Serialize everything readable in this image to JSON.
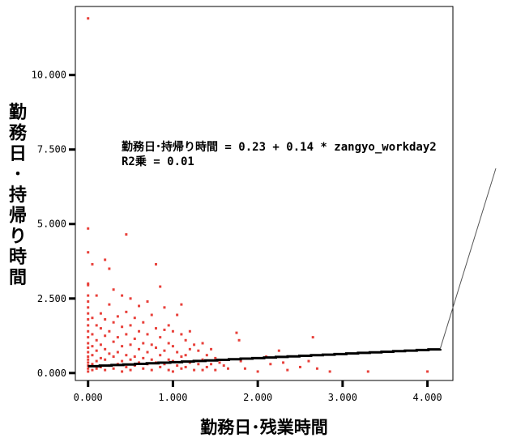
{
  "chart_data": {
    "type": "scatter",
    "title": "",
    "xlabel": "勤務日･残業時間",
    "ylabel": "勤務日･持帰り時間",
    "xlim": [
      -0.15,
      4.3
    ],
    "ylim": [
      -0.25,
      12.3
    ],
    "x_ticks": [
      0,
      1,
      2,
      3,
      4
    ],
    "x_tick_labels": [
      "0.000",
      "1.000",
      "2.000",
      "3.000",
      "4.000"
    ],
    "y_ticks": [
      0,
      2.5,
      5,
      7.5,
      10
    ],
    "y_tick_labels": [
      "0.000",
      "2.500",
      "5.000",
      "7.500",
      "10.000"
    ],
    "grid": false,
    "colors": {
      "points": "#e8403a",
      "fit_line": "#000000",
      "frame": "#000000"
    },
    "annotation": {
      "equation": "勤務日･持帰り時間 = 0.23 + 0.14 * zangyo_workday2",
      "r2": "R2乗 = 0.01"
    },
    "fit": {
      "intercept": 0.23,
      "slope": 0.14,
      "x_range": [
        0,
        4.15
      ]
    },
    "points": [
      [
        0,
        11.9
      ],
      [
        0,
        4.85
      ],
      [
        0,
        4.05
      ],
      [
        0,
        3.0
      ],
      [
        0,
        2.95
      ],
      [
        0,
        2.6
      ],
      [
        0,
        2.4
      ],
      [
        0,
        2.2
      ],
      [
        0,
        2.0
      ],
      [
        0,
        1.8
      ],
      [
        0,
        1.6
      ],
      [
        0,
        1.4
      ],
      [
        0,
        1.2
      ],
      [
        0,
        1.0
      ],
      [
        0,
        0.85
      ],
      [
        0,
        0.7
      ],
      [
        0,
        0.55
      ],
      [
        0,
        0.45
      ],
      [
        0,
        0.35
      ],
      [
        0,
        0.25
      ],
      [
        0,
        0.15
      ],
      [
        0,
        0.05
      ],
      [
        0.05,
        3.65
      ],
      [
        0.05,
        1.85
      ],
      [
        0.05,
        1.3
      ],
      [
        0.05,
        0.9
      ],
      [
        0.05,
        0.6
      ],
      [
        0.05,
        0.3
      ],
      [
        0.05,
        0.1
      ],
      [
        0.1,
        2.6
      ],
      [
        0.1,
        1.6
      ],
      [
        0.1,
        1.1
      ],
      [
        0.1,
        0.75
      ],
      [
        0.1,
        0.4
      ],
      [
        0.1,
        0.15
      ],
      [
        0.15,
        2.0
      ],
      [
        0.15,
        1.5
      ],
      [
        0.15,
        0.95
      ],
      [
        0.15,
        0.5
      ],
      [
        0.15,
        0.2
      ],
      [
        0.2,
        3.8
      ],
      [
        0.2,
        1.8
      ],
      [
        0.2,
        1.25
      ],
      [
        0.2,
        0.8
      ],
      [
        0.2,
        0.45
      ],
      [
        0.2,
        0.1
      ],
      [
        0.25,
        3.5
      ],
      [
        0.25,
        2.3
      ],
      [
        0.25,
        1.4
      ],
      [
        0.25,
        0.65
      ],
      [
        0.25,
        0.25
      ],
      [
        0.3,
        2.8
      ],
      [
        0.3,
        1.7
      ],
      [
        0.3,
        1.05
      ],
      [
        0.3,
        0.55
      ],
      [
        0.3,
        0.15
      ],
      [
        0.35,
        1.9
      ],
      [
        0.35,
        1.2
      ],
      [
        0.35,
        0.7
      ],
      [
        0.35,
        0.3
      ],
      [
        0.4,
        2.6
      ],
      [
        0.4,
        1.55
      ],
      [
        0.4,
        0.9
      ],
      [
        0.4,
        0.4
      ],
      [
        0.4,
        0.05
      ],
      [
        0.45,
        4.65
      ],
      [
        0.45,
        2.05
      ],
      [
        0.45,
        1.3
      ],
      [
        0.45,
        0.6
      ],
      [
        0.45,
        0.2
      ],
      [
        0.5,
        2.5
      ],
      [
        0.5,
        1.6
      ],
      [
        0.5,
        0.95
      ],
      [
        0.5,
        0.45
      ],
      [
        0.5,
        0.1
      ],
      [
        0.55,
        1.85
      ],
      [
        0.55,
        1.15
      ],
      [
        0.55,
        0.55
      ],
      [
        0.55,
        0.25
      ],
      [
        0.6,
        2.25
      ],
      [
        0.6,
        1.4
      ],
      [
        0.6,
        0.8
      ],
      [
        0.6,
        0.35
      ],
      [
        0.65,
        1.7
      ],
      [
        0.65,
        1.0
      ],
      [
        0.65,
        0.5
      ],
      [
        0.65,
        0.15
      ],
      [
        0.7,
        2.4
      ],
      [
        0.7,
        1.3
      ],
      [
        0.7,
        0.7
      ],
      [
        0.7,
        0.3
      ],
      [
        0.75,
        1.95
      ],
      [
        0.75,
        0.95
      ],
      [
        0.75,
        0.45
      ],
      [
        0.75,
        0.1
      ],
      [
        0.8,
        3.65
      ],
      [
        0.8,
        1.5
      ],
      [
        0.8,
        0.85
      ],
      [
        0.8,
        0.35
      ],
      [
        0.85,
        2.9
      ],
      [
        0.85,
        1.2
      ],
      [
        0.85,
        0.6
      ],
      [
        0.85,
        0.2
      ],
      [
        0.9,
        2.2
      ],
      [
        0.9,
        1.45
      ],
      [
        0.9,
        0.75
      ],
      [
        0.9,
        0.3
      ],
      [
        0.95,
        1.6
      ],
      [
        0.95,
        1.0
      ],
      [
        0.95,
        0.45
      ],
      [
        0.95,
        0.1
      ],
      [
        1.0,
        1.4
      ],
      [
        1.0,
        0.9
      ],
      [
        1.0,
        0.4
      ],
      [
        1.0,
        0.05
      ],
      [
        1.05,
        1.95
      ],
      [
        1.05,
        0.7
      ],
      [
        1.05,
        0.25
      ],
      [
        1.1,
        2.3
      ],
      [
        1.1,
        1.3
      ],
      [
        1.1,
        0.55
      ],
      [
        1.1,
        0.15
      ],
      [
        1.15,
        1.1
      ],
      [
        1.15,
        0.6
      ],
      [
        1.15,
        0.2
      ],
      [
        1.2,
        1.4
      ],
      [
        1.2,
        0.8
      ],
      [
        1.2,
        0.35
      ],
      [
        1.25,
        0.95
      ],
      [
        1.25,
        0.4
      ],
      [
        1.25,
        0.1
      ],
      [
        1.3,
        0.75
      ],
      [
        1.3,
        0.3
      ],
      [
        1.35,
        1.0
      ],
      [
        1.35,
        0.45
      ],
      [
        1.35,
        0.1
      ],
      [
        1.4,
        0.6
      ],
      [
        1.4,
        0.2
      ],
      [
        1.45,
        0.8
      ],
      [
        1.45,
        0.3
      ],
      [
        1.5,
        0.5
      ],
      [
        1.5,
        0.1
      ],
      [
        1.55,
        0.35
      ],
      [
        1.6,
        0.25
      ],
      [
        1.65,
        0.15
      ],
      [
        1.75,
        1.35
      ],
      [
        1.78,
        1.1
      ],
      [
        1.8,
        0.4
      ],
      [
        1.85,
        0.15
      ],
      [
        2.0,
        0.05
      ],
      [
        2.1,
        0.55
      ],
      [
        2.15,
        0.3
      ],
      [
        2.25,
        0.75
      ],
      [
        2.3,
        0.35
      ],
      [
        2.35,
        0.1
      ],
      [
        2.5,
        0.2
      ],
      [
        2.6,
        0.4
      ],
      [
        2.65,
        1.2
      ],
      [
        2.7,
        0.15
      ],
      [
        2.85,
        0.05
      ],
      [
        3.3,
        0.05
      ],
      [
        4.0,
        0.05
      ]
    ]
  }
}
